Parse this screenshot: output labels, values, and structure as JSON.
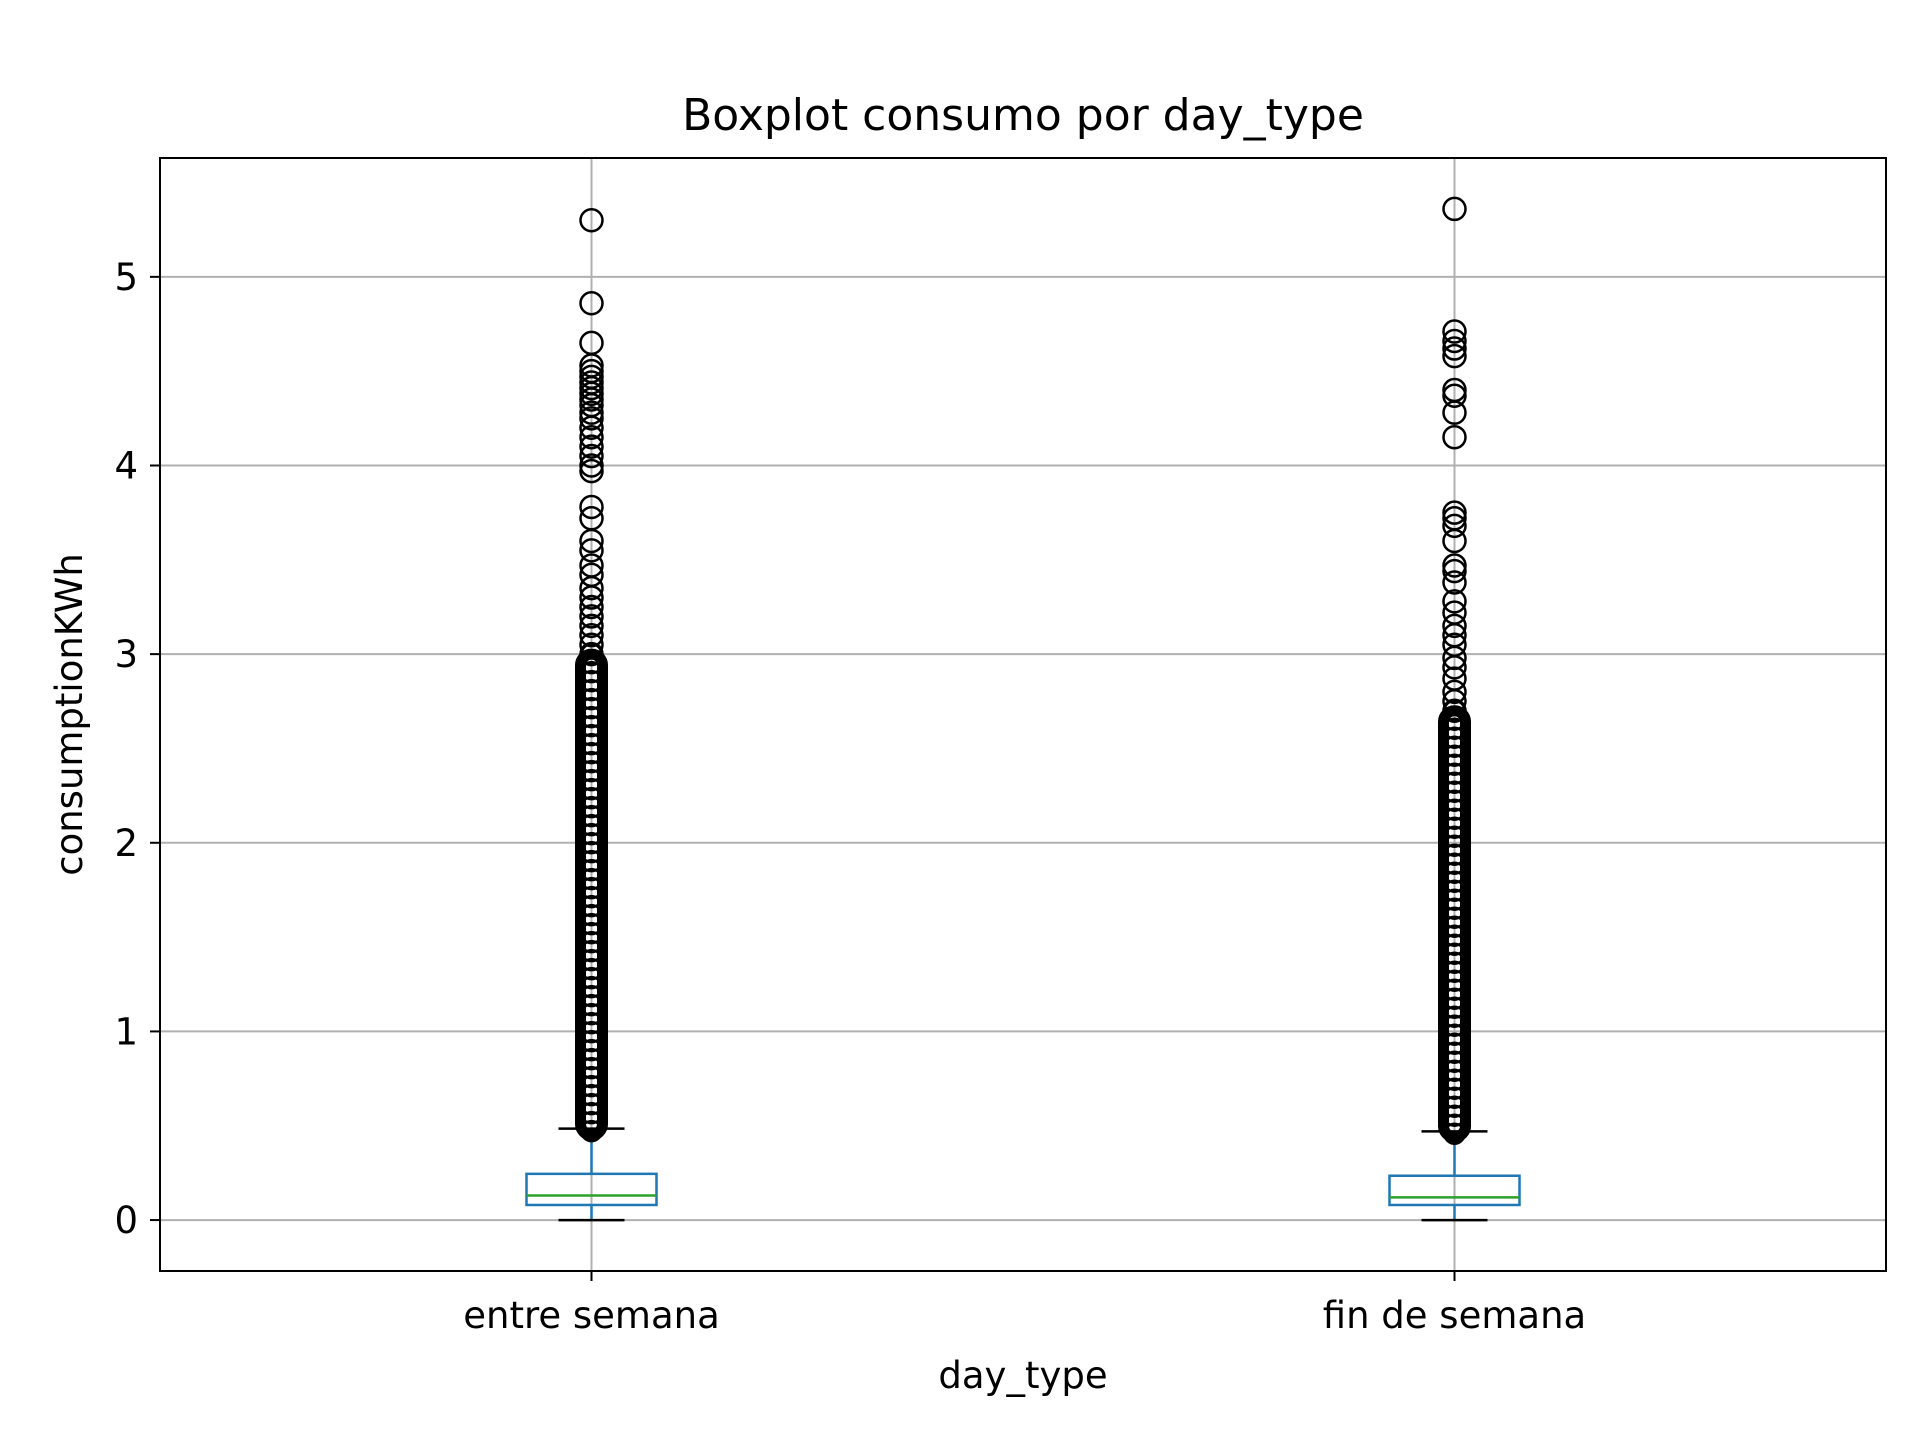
{
  "chart_data": {
    "type": "box",
    "title": "Boxplot consumo por day_type",
    "xlabel": "day_type",
    "ylabel": "consumptionKWh",
    "categories": [
      "entre semana",
      "fin de semana"
    ],
    "ylim": [
      -0.27,
      5.63
    ],
    "yticks": [
      0,
      1,
      2,
      3,
      4,
      5
    ],
    "grid": true,
    "colors": {
      "box": "#1f77b4",
      "median": "#2ca02c",
      "whisker": "#1f77b4",
      "cap": "#000000",
      "flier": "#000000",
      "grid": "#b0b0b0",
      "frame": "#000000"
    },
    "boxes": [
      {
        "category": "entre semana",
        "whislo": 0.0,
        "q1": 0.08,
        "median": 0.13,
        "q3": 0.245,
        "whishi": 0.485,
        "fliers_dense_range": [
          0.45,
          3.0
        ],
        "fliers": [
          5.3,
          4.86,
          4.65,
          4.53,
          4.5,
          4.47,
          4.44,
          4.41,
          4.38,
          4.35,
          4.32,
          4.28,
          4.25,
          4.2,
          4.15,
          4.1,
          4.05,
          4.0,
          3.97,
          3.78,
          3.72,
          3.6,
          3.55,
          3.47,
          3.42,
          3.35,
          3.3,
          3.25,
          3.2,
          3.15,
          3.1,
          3.05,
          3.0
        ]
      },
      {
        "category": "fin de semana",
        "whislo": 0.0,
        "q1": 0.08,
        "median": 0.12,
        "q3": 0.235,
        "whishi": 0.47,
        "fliers_dense_range": [
          0.44,
          2.7
        ],
        "fliers": [
          5.36,
          4.71,
          4.66,
          4.62,
          4.58,
          4.4,
          4.37,
          4.28,
          4.15,
          3.75,
          3.72,
          3.68,
          3.6,
          3.47,
          3.44,
          3.38,
          3.28,
          3.22,
          3.15,
          3.1,
          3.05,
          2.98,
          2.93,
          2.87,
          2.8,
          2.75,
          2.7
        ]
      }
    ]
  }
}
